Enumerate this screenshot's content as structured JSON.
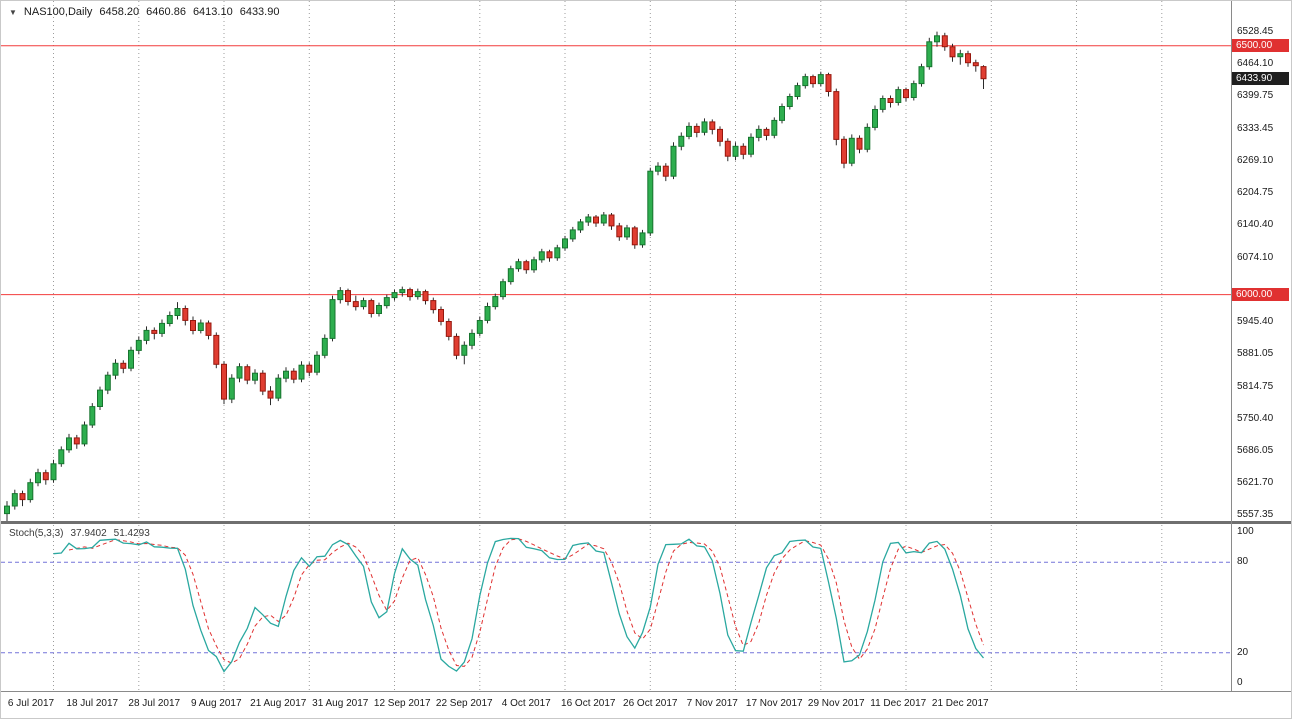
{
  "window": {
    "symbol": "NAS100,Daily",
    "open": "6458.20",
    "high": "6460.86",
    "low": "6413.10",
    "close": "6433.90"
  },
  "indicator": {
    "label": "Stoch(5,3,3)",
    "value_main": "37.9402",
    "value_signal": "51.4293",
    "axis_labels": [
      "100",
      "80",
      "20",
      "0"
    ],
    "levels": [
      80,
      20
    ]
  },
  "colors": {
    "up_fill": "#2eae4f",
    "up_border": "#17742f",
    "down_fill": "#e03d31",
    "down_border": "#96170d",
    "wick": "#2b2b2b",
    "hline": "#f23b3b",
    "badge_line_bg": "#e03131",
    "badge_current_bg": "#1f1f1f",
    "stoch_main": "#2aa8a0",
    "stoch_signal": "#e03131",
    "level_line": "#7373d9",
    "grid": "#9c9c9c",
    "frame": "#8a8a8a",
    "axis_text": "#1a1a1a"
  },
  "chart_data": {
    "type": "candlestick",
    "symbol": "NAS100",
    "timeframe": "Daily",
    "title": "NAS100,Daily 6458.20 6460.86 6413.10 6433.90",
    "y_range": [
      5545,
      6590
    ],
    "y_axis_labels": [
      "6528.45",
      "6464.10",
      "6399.75",
      "6333.45",
      "6269.10",
      "6204.75",
      "6140.40",
      "6074.10",
      "5945.40",
      "5881.05",
      "5814.75",
      "5750.40",
      "5686.05",
      "5621.70",
      "5557.35"
    ],
    "horizontal_lines": [
      {
        "price": 6500,
        "label": "6500.00"
      },
      {
        "price": 6000,
        "label": "6000.00"
      }
    ],
    "current_price": {
      "price": 6433.9,
      "label": "6433.90"
    },
    "x_labels": [
      {
        "index": 3,
        "label": "6 Jul 2017"
      },
      {
        "index": 11,
        "label": "18 Jul 2017"
      },
      {
        "index": 19,
        "label": "28 Jul 2017"
      },
      {
        "index": 27,
        "label": "9 Aug 2017"
      },
      {
        "index": 35,
        "label": "21 Aug 2017"
      },
      {
        "index": 43,
        "label": "31 Aug 2017"
      },
      {
        "index": 51,
        "label": "12 Sep 2017"
      },
      {
        "index": 59,
        "label": "22 Sep 2017"
      },
      {
        "index": 67,
        "label": "4 Oct 2017"
      },
      {
        "index": 75,
        "label": "16 Oct 2017"
      },
      {
        "index": 83,
        "label": "26 Oct 2017"
      },
      {
        "index": 91,
        "label": "7 Nov 2017"
      },
      {
        "index": 99,
        "label": "17 Nov 2017"
      },
      {
        "index": 107,
        "label": "29 Nov 2017"
      },
      {
        "index": 115,
        "label": "11 Dec 2017"
      },
      {
        "index": 123,
        "label": "21 Dec 2017"
      }
    ],
    "candles": [
      [
        5560,
        5585,
        5545,
        5575
      ],
      [
        5575,
        5608,
        5568,
        5600
      ],
      [
        5600,
        5606,
        5575,
        5588
      ],
      [
        5588,
        5630,
        5582,
        5622
      ],
      [
        5622,
        5650,
        5615,
        5642
      ],
      [
        5642,
        5648,
        5618,
        5628
      ],
      [
        5628,
        5668,
        5622,
        5660
      ],
      [
        5660,
        5695,
        5654,
        5688
      ],
      [
        5688,
        5720,
        5682,
        5712
      ],
      [
        5712,
        5718,
        5690,
        5700
      ],
      [
        5700,
        5745,
        5695,
        5738
      ],
      [
        5738,
        5782,
        5732,
        5775
      ],
      [
        5775,
        5815,
        5768,
        5808
      ],
      [
        5808,
        5845,
        5800,
        5838
      ],
      [
        5838,
        5870,
        5830,
        5862
      ],
      [
        5862,
        5868,
        5842,
        5852
      ],
      [
        5852,
        5895,
        5846,
        5888
      ],
      [
        5888,
        5916,
        5880,
        5908
      ],
      [
        5908,
        5936,
        5900,
        5928
      ],
      [
        5928,
        5934,
        5910,
        5922
      ],
      [
        5922,
        5950,
        5915,
        5942
      ],
      [
        5942,
        5966,
        5936,
        5958
      ],
      [
        5958,
        5985,
        5950,
        5972
      ],
      [
        5972,
        5978,
        5938,
        5948
      ],
      [
        5948,
        5956,
        5920,
        5928
      ],
      [
        5928,
        5950,
        5922,
        5943
      ],
      [
        5943,
        5948,
        5910,
        5918
      ],
      [
        5918,
        5924,
        5852,
        5860
      ],
      [
        5860,
        5866,
        5780,
        5790
      ],
      [
        5790,
        5840,
        5782,
        5832
      ],
      [
        5832,
        5862,
        5824,
        5855
      ],
      [
        5855,
        5860,
        5820,
        5828
      ],
      [
        5828,
        5850,
        5820,
        5842
      ],
      [
        5842,
        5848,
        5798,
        5806
      ],
      [
        5806,
        5816,
        5778,
        5792
      ],
      [
        5792,
        5840,
        5786,
        5832
      ],
      [
        5832,
        5854,
        5824,
        5846
      ],
      [
        5846,
        5852,
        5822,
        5830
      ],
      [
        5830,
        5866,
        5824,
        5858
      ],
      [
        5858,
        5864,
        5836,
        5844
      ],
      [
        5844,
        5886,
        5838,
        5878
      ],
      [
        5878,
        5920,
        5872,
        5912
      ],
      [
        5912,
        5998,
        5906,
        5990
      ],
      [
        5990,
        6015,
        5982,
        6008
      ],
      [
        6008,
        6012,
        5978,
        5986
      ],
      [
        5986,
        5998,
        5968,
        5976
      ],
      [
        5976,
        5994,
        5970,
        5988
      ],
      [
        5988,
        5992,
        5954,
        5962
      ],
      [
        5962,
        5984,
        5956,
        5978
      ],
      [
        5978,
        6000,
        5972,
        5994
      ],
      [
        5994,
        6010,
        5988,
        6004
      ],
      [
        6004,
        6016,
        5996,
        6010
      ],
      [
        6010,
        6014,
        5988,
        5996
      ],
      [
        5996,
        6012,
        5990,
        6006
      ],
      [
        6006,
        6010,
        5980,
        5988
      ],
      [
        5988,
        5994,
        5962,
        5970
      ],
      [
        5970,
        5976,
        5938,
        5946
      ],
      [
        5946,
        5952,
        5908,
        5916
      ],
      [
        5916,
        5922,
        5870,
        5878
      ],
      [
        5878,
        5906,
        5860,
        5898
      ],
      [
        5898,
        5930,
        5890,
        5922
      ],
      [
        5922,
        5956,
        5916,
        5948
      ],
      [
        5948,
        5984,
        5942,
        5976
      ],
      [
        5976,
        6002,
        5970,
        5996
      ],
      [
        5996,
        6032,
        5990,
        6026
      ],
      [
        6026,
        6058,
        6020,
        6052
      ],
      [
        6052,
        6072,
        6046,
        6066
      ],
      [
        6066,
        6070,
        6042,
        6050
      ],
      [
        6050,
        6076,
        6044,
        6070
      ],
      [
        6070,
        6092,
        6064,
        6086
      ],
      [
        6086,
        6090,
        6066,
        6074
      ],
      [
        6074,
        6100,
        6068,
        6094
      ],
      [
        6094,
        6118,
        6088,
        6112
      ],
      [
        6112,
        6136,
        6106,
        6130
      ],
      [
        6130,
        6152,
        6124,
        6146
      ],
      [
        6146,
        6162,
        6138,
        6156
      ],
      [
        6156,
        6160,
        6136,
        6144
      ],
      [
        6144,
        6166,
        6138,
        6160
      ],
      [
        6160,
        6164,
        6130,
        6138
      ],
      [
        6138,
        6144,
        6108,
        6116
      ],
      [
        6116,
        6140,
        6110,
        6134
      ],
      [
        6134,
        6138,
        6092,
        6100
      ],
      [
        6100,
        6130,
        6094,
        6124
      ],
      [
        6124,
        6255,
        6118,
        6248
      ],
      [
        6248,
        6266,
        6240,
        6258
      ],
      [
        6258,
        6264,
        6228,
        6238
      ],
      [
        6238,
        6306,
        6232,
        6298
      ],
      [
        6298,
        6326,
        6290,
        6318
      ],
      [
        6318,
        6346,
        6312,
        6338
      ],
      [
        6338,
        6344,
        6316,
        6326
      ],
      [
        6326,
        6354,
        6320,
        6347
      ],
      [
        6347,
        6352,
        6322,
        6332
      ],
      [
        6332,
        6338,
        6298,
        6308
      ],
      [
        6308,
        6314,
        6268,
        6278
      ],
      [
        6278,
        6306,
        6270,
        6298
      ],
      [
        6298,
        6304,
        6272,
        6282
      ],
      [
        6282,
        6324,
        6276,
        6316
      ],
      [
        6316,
        6340,
        6308,
        6332
      ],
      [
        6332,
        6336,
        6310,
        6320
      ],
      [
        6320,
        6356,
        6314,
        6350
      ],
      [
        6350,
        6384,
        6344,
        6378
      ],
      [
        6378,
        6404,
        6372,
        6398
      ],
      [
        6398,
        6426,
        6392,
        6420
      ],
      [
        6420,
        6444,
        6414,
        6438
      ],
      [
        6438,
        6442,
        6416,
        6424
      ],
      [
        6424,
        6448,
        6418,
        6442
      ],
      [
        6442,
        6446,
        6398,
        6408
      ],
      [
        6408,
        6414,
        6300,
        6312
      ],
      [
        6312,
        6318,
        6254,
        6264
      ],
      [
        6264,
        6322,
        6258,
        6314
      ],
      [
        6314,
        6320,
        6284,
        6292
      ],
      [
        6292,
        6344,
        6286,
        6336
      ],
      [
        6336,
        6380,
        6330,
        6372
      ],
      [
        6372,
        6400,
        6366,
        6394
      ],
      [
        6394,
        6400,
        6376,
        6386
      ],
      [
        6386,
        6418,
        6380,
        6412
      ],
      [
        6412,
        6416,
        6388,
        6396
      ],
      [
        6396,
        6430,
        6390,
        6424
      ],
      [
        6424,
        6464,
        6418,
        6458
      ],
      [
        6458,
        6516,
        6452,
        6508
      ],
      [
        6508,
        6528.45,
        6498,
        6520
      ],
      [
        6520,
        6526,
        6490,
        6498
      ],
      [
        6498,
        6504,
        6468,
        6478
      ],
      [
        6478,
        6492,
        6462,
        6484
      ],
      [
        6484,
        6490,
        6458,
        6466
      ],
      [
        6466,
        6472,
        6448,
        6460
      ],
      [
        6458.2,
        6460.86,
        6413.1,
        6433.9
      ]
    ],
    "stochastic": {
      "type": "line",
      "k_period": 5,
      "slowing": 3,
      "d_period": 3,
      "range": [
        0,
        100
      ],
      "levels": [
        80,
        20
      ],
      "last_main": 37.9402,
      "last_signal": 51.4293
    }
  }
}
